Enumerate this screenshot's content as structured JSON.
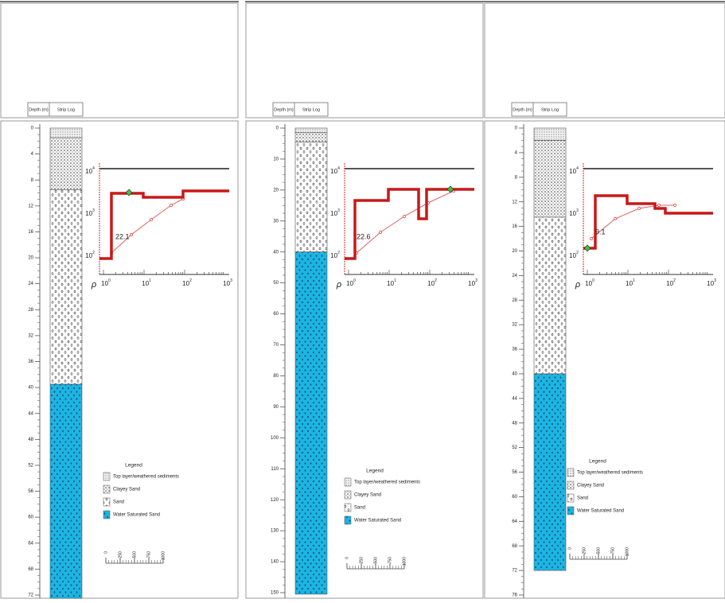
{
  "panels": [
    {
      "header": {
        "depth": "Depth (m)",
        "strip": "Strip Log"
      },
      "depth_ticks": [
        0,
        4,
        8,
        12,
        16,
        20,
        24,
        28,
        32,
        36,
        40,
        44,
        48,
        52,
        56,
        60,
        64,
        68,
        72
      ],
      "inset": {
        "rho": "ρ",
        "annotation": "22.1",
        "y_labels": [
          {
            "base": "10",
            "exp": "4"
          },
          {
            "base": "10",
            "exp": "3"
          },
          {
            "base": "10",
            "exp": "2"
          }
        ],
        "x_labels": [
          {
            "base": "10",
            "exp": "0"
          },
          {
            "base": "10",
            "exp": "1"
          },
          {
            "base": "10",
            "exp": "2"
          },
          {
            "base": "10",
            "exp": "3"
          }
        ]
      },
      "legend": {
        "title": "Legend",
        "items": [
          {
            "label": "Top layer/weathered sediments",
            "top": 0,
            "bottom": 1.5
          },
          {
            "label": "Clayey Sand",
            "top": 1.5,
            "bottom": 9.5
          },
          {
            "label": "Sand",
            "top": 9.5,
            "bottom": 39.5
          },
          {
            "label": "Water Saturated Sand",
            "top": 39.5,
            "bottom": 72.5
          }
        ],
        "scale": [
          0,
          250,
          500,
          750,
          1000
        ]
      }
    },
    {
      "header": {
        "depth": "Depth (m)",
        "strip": "Strip Log"
      },
      "depth_ticks": [
        0,
        10,
        20,
        30,
        40,
        50,
        60,
        70,
        80,
        90,
        100,
        110,
        120,
        130,
        140,
        150
      ],
      "inset": {
        "rho": "ρ",
        "annotation": "22.6",
        "y_labels": [
          {
            "base": "10",
            "exp": "4"
          },
          {
            "base": "10",
            "exp": "3"
          },
          {
            "base": "10",
            "exp": "2"
          }
        ],
        "x_labels": [
          {
            "base": "10",
            "exp": "0"
          },
          {
            "base": "10",
            "exp": "1"
          },
          {
            "base": "10",
            "exp": "2"
          },
          {
            "base": "10",
            "exp": "3"
          }
        ]
      },
      "legend": {
        "title": "Legend",
        "items": [
          {
            "label": "Top layer/weathered sediments",
            "top": 0,
            "bottom": 1.5
          },
          {
            "label": "Clayey Sand",
            "top": 1.5,
            "bottom": 4.5
          },
          {
            "label": "Sand",
            "top": 4.5,
            "bottom": 40
          },
          {
            "label": "Water Saturated Sand",
            "top": 40,
            "bottom": 150.5
          }
        ],
        "scale": [
          0,
          250,
          500,
          750,
          1000
        ]
      }
    },
    {
      "header": {
        "depth": "Depth (m)",
        "strip": "Strip Log"
      },
      "depth_ticks": [
        0,
        4,
        8,
        12,
        16,
        20,
        24,
        28,
        32,
        36,
        40,
        44,
        48,
        52,
        56,
        60,
        64,
        68,
        72,
        76
      ],
      "inset": {
        "rho": "ρ",
        "annotation": "9.1",
        "y_labels": [
          {
            "base": "10",
            "exp": "4"
          },
          {
            "base": "10",
            "exp": "3"
          },
          {
            "base": "10",
            "exp": "2"
          }
        ],
        "x_labels": [
          {
            "base": "10",
            "exp": "0"
          },
          {
            "base": "10",
            "exp": "1"
          },
          {
            "base": "10",
            "exp": "2"
          },
          {
            "base": "10",
            "exp": "3"
          }
        ]
      },
      "legend": {
        "title": "Legend",
        "items": [
          {
            "label": "Top layer/weathered sediments",
            "top": 0,
            "bottom": 2
          },
          {
            "label": "Clayey Sand",
            "top": 2,
            "bottom": 14.5
          },
          {
            "label": "Sand",
            "top": 14.5,
            "bottom": 40
          },
          {
            "label": "Water Saturated Sand",
            "top": 40,
            "bottom": 72
          }
        ],
        "scale": [
          0,
          250,
          500,
          750,
          1000
        ]
      }
    }
  ]
}
